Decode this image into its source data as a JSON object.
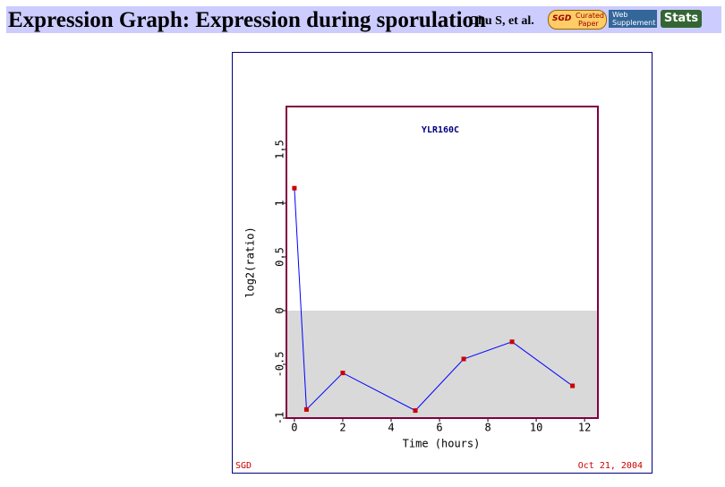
{
  "header": {
    "title": "Expression Graph: Expression during sporulation",
    "authors": "Chu S, et al.",
    "badge": [
      "SGD",
      "Curated",
      "Paper"
    ],
    "supplement": [
      "Web",
      "Supplement"
    ],
    "stats": "Stats"
  },
  "chart_data": {
    "type": "line",
    "title": "YLR160C",
    "x_label": "Time (hours)",
    "y_label": "log2(ratio)",
    "x": [
      0,
      0.5,
      2,
      5,
      7,
      9,
      11.5
    ],
    "series": [
      {
        "name": "YLR160C",
        "color": "#0000ff",
        "marker_color": "#cc0000",
        "values": [
          1.14,
          -0.92,
          -0.58,
          -0.93,
          -0.45,
          -0.29,
          -0.7
        ]
      }
    ],
    "xlim": [
      -0.33,
      12.55
    ],
    "xticks": [
      0,
      2,
      4,
      6,
      8,
      10,
      12
    ],
    "ylim": [
      -1,
      1.9
    ],
    "yticks": [
      -1,
      -0.5,
      0,
      0.5,
      1,
      1.5
    ],
    "shade_below_zero": true,
    "shade_color": "#d9d9d9",
    "frame_color": "#800040",
    "source": "SGD",
    "date": "Oct 21, 2004"
  }
}
